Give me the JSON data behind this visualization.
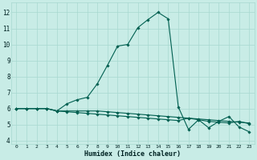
{
  "xlabel": "Humidex (Indice chaleur)",
  "x_values": [
    0,
    1,
    2,
    3,
    4,
    5,
    6,
    7,
    8,
    9,
    10,
    11,
    12,
    13,
    14,
    15,
    16,
    17,
    18,
    19,
    20,
    21,
    22,
    23
  ],
  "line1": [
    6.0,
    6.0,
    6.0,
    6.0,
    5.85,
    6.3,
    6.55,
    6.7,
    7.55,
    8.7,
    9.9,
    10.0,
    11.05,
    11.55,
    12.0,
    11.6,
    6.1,
    4.7,
    5.3,
    4.8,
    5.2,
    5.5,
    4.85,
    4.55
  ],
  "line2": [
    6.0,
    6.0,
    6.0,
    6.0,
    5.85,
    5.85,
    5.85,
    5.85,
    5.85,
    5.8,
    5.75,
    5.7,
    5.65,
    5.6,
    5.55,
    5.5,
    5.45,
    5.4,
    5.35,
    5.3,
    5.25,
    5.2,
    5.15,
    5.1
  ],
  "line3": [
    6.0,
    6.0,
    6.0,
    6.0,
    5.85,
    5.8,
    5.75,
    5.7,
    5.65,
    5.6,
    5.55,
    5.5,
    5.45,
    5.4,
    5.35,
    5.3,
    5.25,
    5.4,
    5.3,
    5.2,
    5.15,
    5.1,
    5.2,
    5.05
  ],
  "bg_color": "#c8ece6",
  "grid_color": "#a8d8d0",
  "line_color": "#005f50",
  "ylim": [
    3.8,
    12.6
  ],
  "yticks": [
    4,
    5,
    6,
    7,
    8,
    9,
    10,
    11,
    12
  ],
  "xlim": [
    -0.5,
    23.5
  ]
}
